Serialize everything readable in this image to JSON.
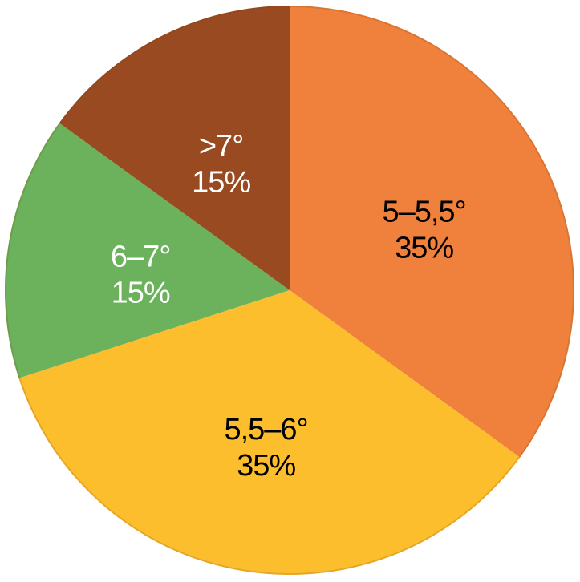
{
  "chart_data": {
    "type": "pie",
    "title": "",
    "legend": "none",
    "background": "#FFFFFF",
    "start_angle_deg": 0,
    "direction": "clockwise",
    "slices": [
      {
        "label": "5–5,5°",
        "percent_label": "35%",
        "value": 35,
        "color": "#EF813C",
        "text_color": "#000000",
        "name": "slice-5-to-5point5-deg"
      },
      {
        "label": "5,5–6°",
        "percent_label": "35%",
        "value": 35,
        "color": "#FDBE2D",
        "text_color": "#000000",
        "name": "slice-5point5-to-6-deg"
      },
      {
        "label": "6–7°",
        "percent_label": "15%",
        "value": 15,
        "color": "#6CB15C",
        "text_color": "#FFFFFF",
        "name": "slice-6-to-7-deg"
      },
      {
        "label": ">7°",
        "percent_label": "15%",
        "value": 15,
        "color": "#9A4A20",
        "text_color": "#FFFFFF",
        "name": "slice-over-7-deg"
      }
    ]
  }
}
